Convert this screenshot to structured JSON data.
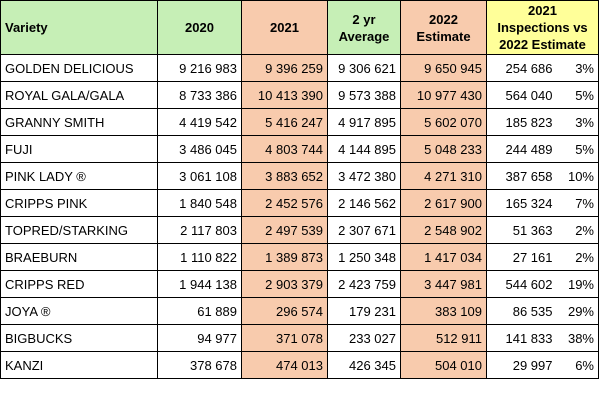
{
  "headers": {
    "variety": "Variety",
    "y2020": "2020",
    "y2021": "2021",
    "avg_line1": "2 yr",
    "avg_line2": "Average",
    "est2022": "2022 Estimate",
    "insp_line1": "2021 Inspections vs",
    "insp_line2": "2022 Estimate"
  },
  "colors": {
    "header_green": "#c6efb6",
    "highlight_orange": "#f8cbad",
    "header_yellow": "#ffff99"
  },
  "rows": [
    {
      "variety": "GOLDEN DELICIOUS",
      "y2020": "9 216 983",
      "y2021": "9 396 259",
      "avg": "9 306 621",
      "est2022": "9 650 945",
      "insp": "254 686",
      "pct": "3%"
    },
    {
      "variety": "ROYAL GALA/GALA",
      "y2020": "8 733 386",
      "y2021": "10 413 390",
      "avg": "9 573 388",
      "est2022": "10 977 430",
      "insp": "564 040",
      "pct": "5%"
    },
    {
      "variety": "GRANNY SMITH",
      "y2020": "4 419 542",
      "y2021": "5 416 247",
      "avg": "4 917 895",
      "est2022": "5 602 070",
      "insp": "185 823",
      "pct": "3%"
    },
    {
      "variety": "FUJI",
      "y2020": "3 486 045",
      "y2021": "4 803 744",
      "avg": "4 144 895",
      "est2022": "5 048 233",
      "insp": "244 489",
      "pct": "5%"
    },
    {
      "variety": "PINK LADY ®",
      "y2020": "3 061 108",
      "y2021": "3 883 652",
      "avg": "3 472 380",
      "est2022": "4 271 310",
      "insp": "387 658",
      "pct": "10%"
    },
    {
      "variety": "CRIPPS PINK",
      "y2020": "1 840 548",
      "y2021": "2 452 576",
      "avg": "2 146 562",
      "est2022": "2 617 900",
      "insp": "165 324",
      "pct": "7%"
    },
    {
      "variety": "TOPRED/STARKING",
      "y2020": "2 117 803",
      "y2021": "2 497 539",
      "avg": "2 307 671",
      "est2022": "2 548 902",
      "insp": "51 363",
      "pct": "2%"
    },
    {
      "variety": "BRAEBURN",
      "y2020": "1 110 822",
      "y2021": "1 389 873",
      "avg": "1 250 348",
      "est2022": "1 417 034",
      "insp": "27 161",
      "pct": "2%"
    },
    {
      "variety": "CRIPPS RED",
      "y2020": "1 944 138",
      "y2021": "2 903 379",
      "avg": "2 423 759",
      "est2022": "3 447 981",
      "insp": "544 602",
      "pct": "19%"
    },
    {
      "variety": "JOYA ®",
      "y2020": "61 889",
      "y2021": "296 574",
      "avg": "179 231",
      "est2022": "383 109",
      "insp": "86 535",
      "pct": "29%"
    },
    {
      "variety": "BIGBUCKS",
      "y2020": "94 977",
      "y2021": "371 078",
      "avg": "233 027",
      "est2022": "512 911",
      "insp": "141 833",
      "pct": "38%"
    },
    {
      "variety": "KANZI",
      "y2020": "378 678",
      "y2021": "474 013",
      "avg": "426 345",
      "est2022": "504 010",
      "insp": "29 997",
      "pct": "6%"
    }
  ]
}
